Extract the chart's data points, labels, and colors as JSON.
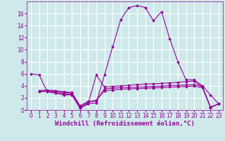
{
  "background_color": "#cee9e9",
  "grid_color": "#b8d8d8",
  "line_color": "#990099",
  "xlabel": "Windchill (Refroidissement éolien,°C)",
  "xlim": [
    -0.5,
    23.5
  ],
  "ylim": [
    0,
    18
  ],
  "yticks": [
    0,
    2,
    4,
    6,
    8,
    10,
    12,
    14,
    16
  ],
  "xticks": [
    0,
    1,
    2,
    3,
    4,
    5,
    6,
    7,
    8,
    9,
    10,
    11,
    12,
    13,
    14,
    15,
    16,
    17,
    18,
    19,
    20,
    21,
    22,
    23
  ],
  "lines": [
    {
      "x": [
        0,
        1,
        2,
        3,
        4,
        5,
        6,
        7,
        8,
        9,
        10,
        11,
        12,
        13,
        14,
        15,
        16,
        17,
        18,
        19,
        20,
        21,
        22,
        23
      ],
      "y": [
        6.0,
        5.8,
        3.0,
        2.8,
        2.5,
        2.5,
        0.3,
        1.0,
        1.2,
        5.8,
        10.5,
        15.0,
        17.0,
        17.3,
        17.0,
        14.8,
        16.3,
        11.8,
        8.0,
        5.0,
        5.0,
        4.0,
        2.5,
        1.0
      ]
    },
    {
      "x": [
        1,
        2,
        3,
        4,
        5,
        6,
        7,
        8,
        9,
        10,
        11,
        12,
        13,
        14,
        15,
        16,
        17,
        18,
        19,
        20,
        21,
        22,
        23
      ],
      "y": [
        3.0,
        3.1,
        2.9,
        2.7,
        2.6,
        0.3,
        1.1,
        5.8,
        3.8,
        3.9,
        4.0,
        4.1,
        4.2,
        4.3,
        4.35,
        4.4,
        4.5,
        4.6,
        4.7,
        4.8,
        3.8,
        0.4,
        1.0
      ]
    },
    {
      "x": [
        1,
        2,
        3,
        4,
        5,
        6,
        7,
        8,
        9,
        10,
        11,
        12,
        13,
        14,
        15,
        16,
        17,
        18,
        19,
        20,
        21,
        22,
        23
      ],
      "y": [
        3.1,
        3.2,
        3.1,
        2.9,
        2.8,
        0.5,
        1.3,
        1.5,
        3.5,
        3.6,
        3.7,
        3.75,
        3.8,
        3.85,
        3.9,
        3.95,
        4.05,
        4.1,
        4.15,
        4.2,
        3.9,
        0.45,
        1.0
      ]
    },
    {
      "x": [
        1,
        2,
        3,
        4,
        5,
        6,
        7,
        8,
        9,
        10,
        11,
        12,
        13,
        14,
        15,
        16,
        17,
        18,
        19,
        20,
        21,
        22,
        23
      ],
      "y": [
        3.2,
        3.3,
        3.2,
        3.0,
        2.9,
        0.7,
        1.4,
        1.6,
        3.2,
        3.3,
        3.45,
        3.5,
        3.55,
        3.6,
        3.65,
        3.7,
        3.8,
        3.85,
        3.9,
        3.95,
        3.7,
        0.5,
        1.0
      ]
    }
  ],
  "marker": "D",
  "markersize": 2.0,
  "linewidth": 0.8,
  "xlabel_fontsize": 6.5,
  "tick_fontsize": 5.5
}
